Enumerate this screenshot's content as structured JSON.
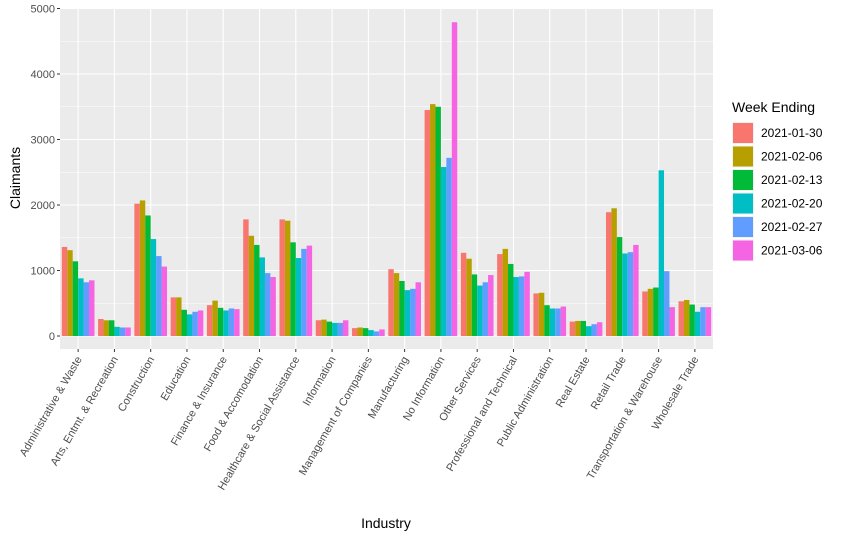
{
  "chart_data": {
    "type": "bar",
    "xlabel": "Industry",
    "ylabel": "Claimants",
    "ylim": [
      0,
      5000
    ],
    "yticks": [
      0,
      1000,
      2000,
      3000,
      4000,
      5000
    ],
    "grid": true,
    "legend": {
      "title": "Week Ending",
      "position": "right"
    },
    "categories": [
      "Administrative & Waste",
      "Arts, Entmt. & Recreation",
      "Construction",
      "Education",
      "Finance & Insurance",
      "Food & Accomodation",
      "Healthcare & Social Assistance",
      "Information",
      "Management of Companies",
      "Manufacturing",
      "No Information",
      "Other Services",
      "Professional and Technical",
      "Public Administration",
      "Real Estate",
      "Retail Trade",
      "Transportation & Warehouse",
      "Wholesale Trade"
    ],
    "series": [
      {
        "name": "2021-01-30",
        "color": "#F8766D",
        "values": [
          1360,
          260,
          2020,
          590,
          470,
          1780,
          1780,
          240,
          120,
          1020,
          3450,
          1270,
          1250,
          650,
          220,
          1890,
          680,
          530
        ]
      },
      {
        "name": "2021-02-06",
        "color": "#B79F00",
        "values": [
          1310,
          240,
          2070,
          590,
          540,
          1530,
          1760,
          250,
          130,
          960,
          3540,
          1180,
          1330,
          660,
          230,
          1950,
          720,
          550
        ]
      },
      {
        "name": "2021-02-13",
        "color": "#00BA38",
        "values": [
          1140,
          240,
          1840,
          400,
          430,
          1390,
          1430,
          220,
          120,
          840,
          3500,
          940,
          1100,
          470,
          230,
          1510,
          740,
          480
        ]
      },
      {
        "name": "2021-02-20",
        "color": "#00BFC4",
        "values": [
          880,
          140,
          1480,
          330,
          390,
          1200,
          1190,
          200,
          90,
          700,
          2580,
          770,
          900,
          420,
          150,
          1260,
          2530,
          370
        ]
      },
      {
        "name": "2021-02-27",
        "color": "#619CFF",
        "values": [
          820,
          130,
          1220,
          370,
          420,
          960,
          1330,
          200,
          70,
          720,
          2720,
          820,
          910,
          420,
          180,
          1280,
          990,
          440
        ]
      },
      {
        "name": "2021-03-06",
        "color": "#F564E3",
        "values": [
          850,
          130,
          1060,
          390,
          410,
          900,
          1380,
          240,
          100,
          820,
          4790,
          930,
          980,
          450,
          210,
          1390,
          440,
          440
        ]
      }
    ]
  }
}
